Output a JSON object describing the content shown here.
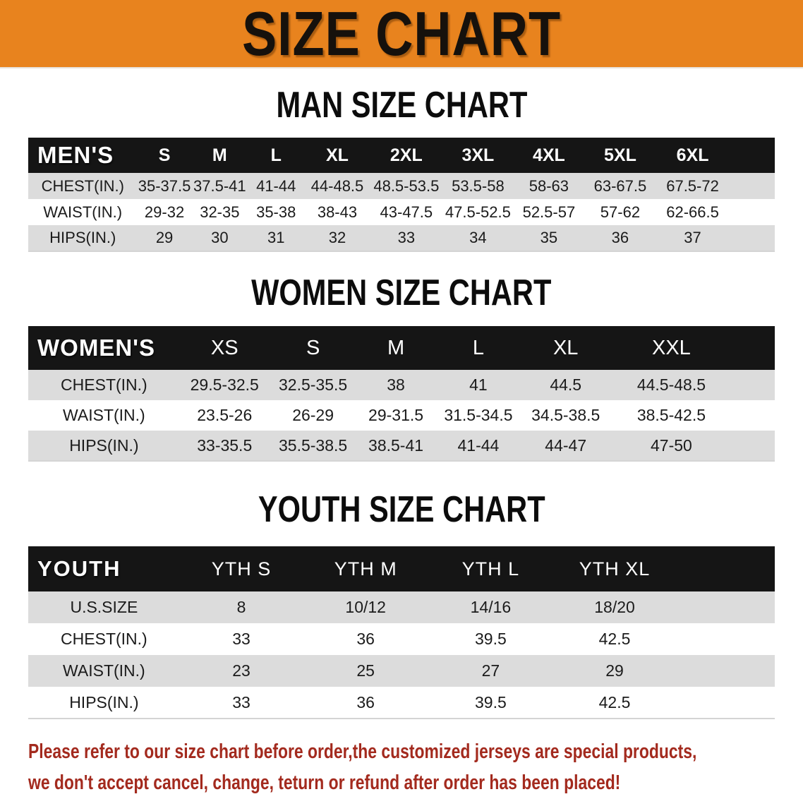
{
  "banner": {
    "title": "SIZE CHART"
  },
  "colors": {
    "banner_bg": "#E8831E",
    "table_header_bg": "#151515",
    "row_alt_bg": "#DCDCDC",
    "disclaimer_color": "#A32A1E"
  },
  "sections": [
    {
      "heading": "MAN SIZE CHART",
      "table": {
        "header_label": "MEN'S",
        "columns": [
          "S",
          "M",
          "L",
          "XL",
          "2XL",
          "3XL",
          "4XL",
          "5XL",
          "6XL"
        ],
        "rows": [
          {
            "label": "CHEST(IN.)",
            "values": [
              "35-37.5",
              "37.5-41",
              "41-44",
              "44-48.5",
              "48.5-53.5",
              "53.5-58",
              "58-63",
              "63-67.5",
              "67.5-72"
            ]
          },
          {
            "label": "WAIST(IN.)",
            "values": [
              "29-32",
              "32-35",
              "35-38",
              "38-43",
              "43-47.5",
              "47.5-52.5",
              "52.5-57",
              "57-62",
              "62-66.5"
            ]
          },
          {
            "label": "HIPS(IN.)",
            "values": [
              "29",
              "30",
              "31",
              "32",
              "33",
              "34",
              "35",
              "36",
              "37"
            ]
          }
        ]
      }
    },
    {
      "heading": "WOMEN SIZE CHART",
      "table": {
        "header_label": "WOMEN'S",
        "columns": [
          "XS",
          "S",
          "M",
          "L",
          "XL",
          "XXL"
        ],
        "rows": [
          {
            "label": "CHEST(IN.)",
            "values": [
              "29.5-32.5",
              "32.5-35.5",
              "38",
              "41",
              "44.5",
              "44.5-48.5"
            ]
          },
          {
            "label": "WAIST(IN.)",
            "values": [
              "23.5-26",
              "26-29",
              "29-31.5",
              "31.5-34.5",
              "34.5-38.5",
              "38.5-42.5"
            ]
          },
          {
            "label": "HIPS(IN.)",
            "values": [
              "33-35.5",
              "35.5-38.5",
              "38.5-41",
              "41-44",
              "44-47",
              "47-50"
            ]
          }
        ]
      }
    },
    {
      "heading": "YOUTH SIZE CHART",
      "table": {
        "header_label": "YOUTH",
        "columns": [
          "YTH S",
          "YTH M",
          "YTH L",
          "YTH XL"
        ],
        "rows": [
          {
            "label": "U.S.SIZE",
            "values": [
              "8",
              "10/12",
              "14/16",
              "18/20"
            ]
          },
          {
            "label": "CHEST(IN.)",
            "values": [
              "33",
              "36",
              "39.5",
              "42.5"
            ]
          },
          {
            "label": "WAIST(IN.)",
            "values": [
              "23",
              "25",
              "27",
              "29"
            ]
          },
          {
            "label": "HIPS(IN.)",
            "values": [
              "33",
              "36",
              "39.5",
              "42.5"
            ]
          }
        ]
      }
    }
  ],
  "disclaimer": {
    "line1": "Please refer to our size chart before order,the customized jerseys are special products,",
    "line2": "we don't accept cancel, change, teturn or refund after order has been placed!"
  }
}
